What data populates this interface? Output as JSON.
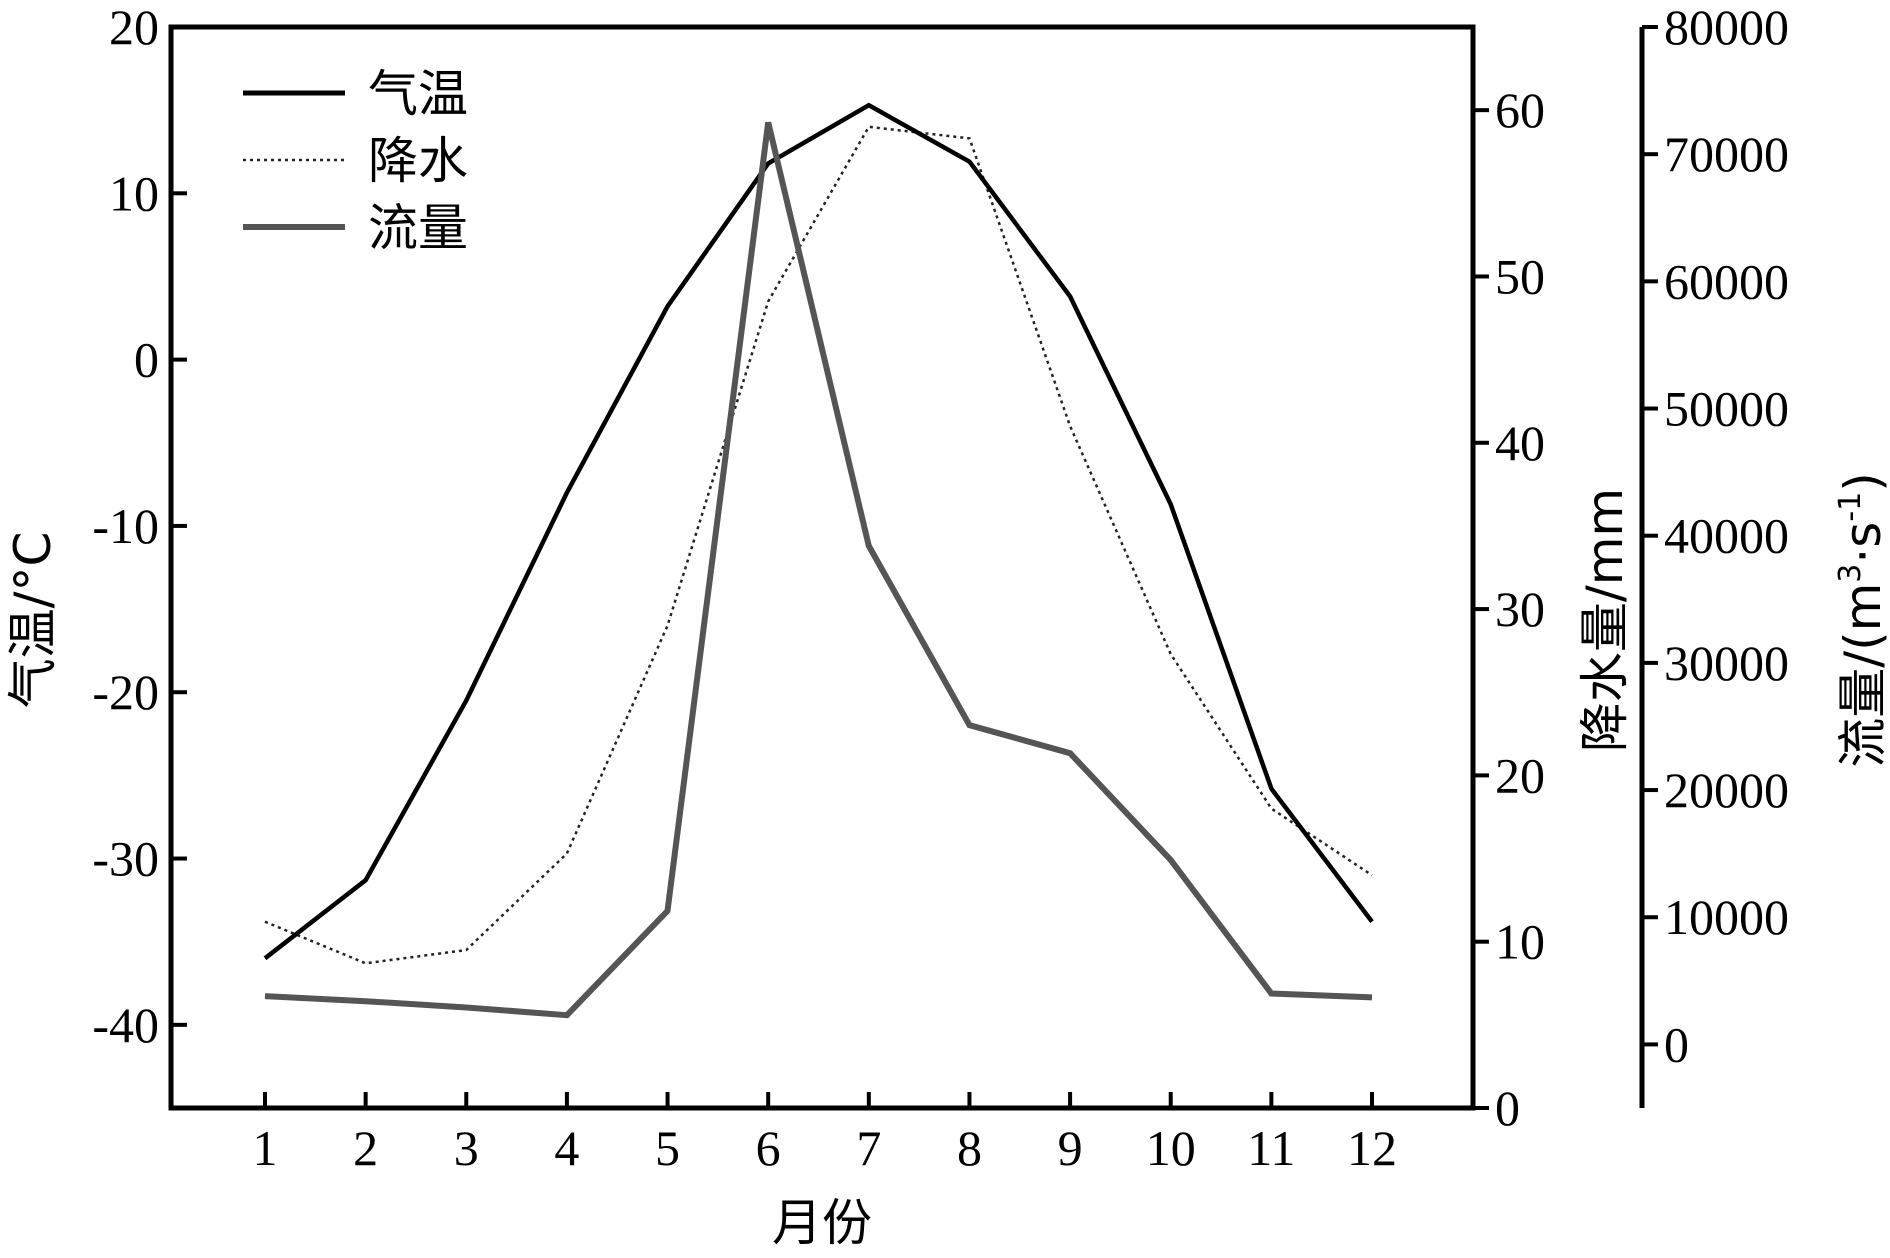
{
  "chart_data": {
    "type": "line",
    "categories": [
      "1",
      "2",
      "3",
      "4",
      "5",
      "6",
      "7",
      "8",
      "9",
      "10",
      "11",
      "12"
    ],
    "xlabel": "月份",
    "axes": {
      "temperature": {
        "label": "气温/°C",
        "ylim": [
          -45,
          20
        ],
        "ticks": [
          20,
          10,
          0,
          -10,
          -20,
          -30,
          -40
        ]
      },
      "precipitation": {
        "label": "降水量/mm",
        "ylim": [
          0,
          65
        ],
        "ticks": [
          60,
          50,
          40,
          30,
          20,
          10,
          0
        ]
      },
      "discharge": {
        "label_main": "流量/(m",
        "label_sup1": "3",
        "label_mid": "·s",
        "label_sup2": "-1",
        "label_end": ")",
        "ylim": [
          -5000,
          80000
        ],
        "ticks": [
          80000,
          70000,
          60000,
          50000,
          40000,
          30000,
          20000,
          10000,
          0
        ]
      }
    },
    "series": [
      {
        "name": "气温",
        "axis": "temperature",
        "color": "#000000",
        "dash": "solid",
        "values": [
          -36,
          -31.3,
          -20.5,
          -8,
          3.2,
          11.8,
          15.3,
          11.9,
          3.8,
          -8.7,
          -25.8,
          -33.8
        ]
      },
      {
        "name": "降水",
        "axis": "precipitation",
        "color": "#222222",
        "dash": "dotted",
        "values": [
          11.2,
          8.7,
          9.5,
          15.3,
          29,
          48.5,
          59,
          58.3,
          41,
          27.3,
          18,
          14
        ]
      },
      {
        "name": "流量",
        "axis": "discharge",
        "color": "#555555",
        "dash": "solid",
        "values": [
          3800,
          3400,
          2900,
          2300,
          10500,
          72500,
          39200,
          25100,
          22900,
          14500,
          4000,
          3700
        ]
      }
    ],
    "legend": "top-left",
    "grid": false
  }
}
